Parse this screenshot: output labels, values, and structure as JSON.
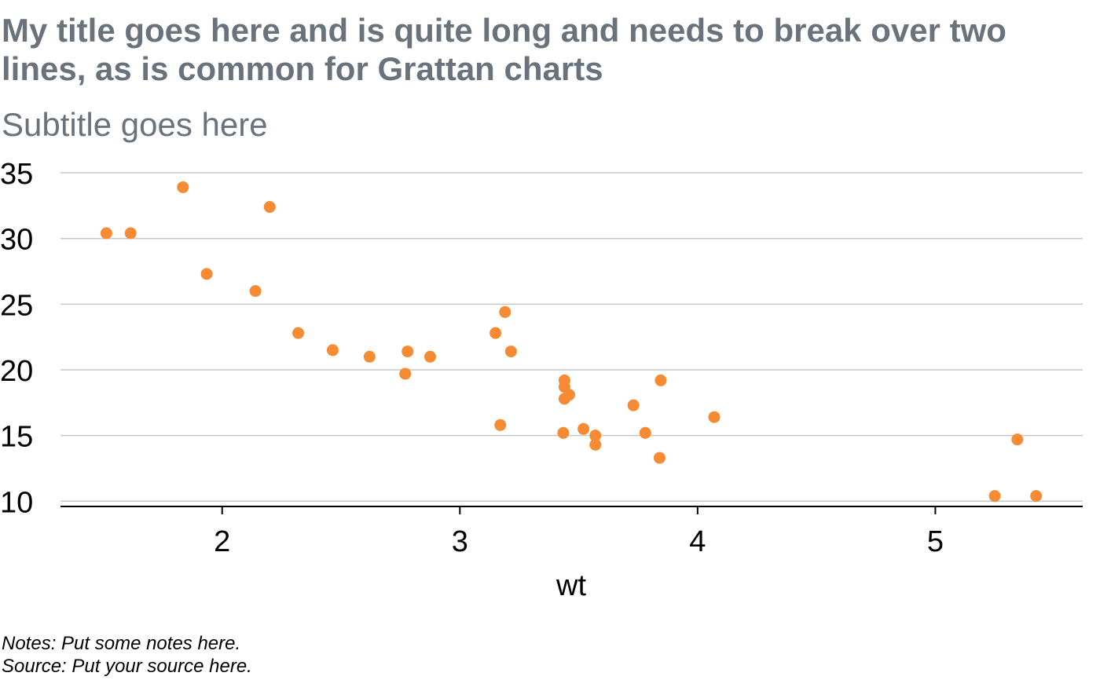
{
  "chart_data": {
    "type": "scatter",
    "title_lines": [
      "My title goes here and is quite long and needs to break over two",
      "lines, as is common for Grattan charts"
    ],
    "subtitle": "Subtitle goes here",
    "xlabel": "wt",
    "ylabel": "",
    "xlim": [
      1.32,
      5.62
    ],
    "ylim": [
      9.6,
      35.9
    ],
    "x_ticks": [
      2,
      3,
      4,
      5
    ],
    "y_ticks": [
      10,
      15,
      20,
      25,
      30,
      35
    ],
    "grid": "horizontal",
    "point_color": "#f68b33",
    "gridline_color": "#c8c8c8",
    "axis_color": "#000000",
    "points": [
      {
        "x": 2.62,
        "y": 21.0
      },
      {
        "x": 2.875,
        "y": 21.0
      },
      {
        "x": 2.32,
        "y": 22.8
      },
      {
        "x": 3.215,
        "y": 21.4
      },
      {
        "x": 3.44,
        "y": 18.7
      },
      {
        "x": 3.46,
        "y": 18.1
      },
      {
        "x": 3.57,
        "y": 14.3
      },
      {
        "x": 3.19,
        "y": 24.4
      },
      {
        "x": 3.15,
        "y": 22.8
      },
      {
        "x": 3.44,
        "y": 19.2
      },
      {
        "x": 3.44,
        "y": 17.8
      },
      {
        "x": 4.07,
        "y": 16.4
      },
      {
        "x": 3.73,
        "y": 17.3
      },
      {
        "x": 3.78,
        "y": 15.2
      },
      {
        "x": 5.25,
        "y": 10.4
      },
      {
        "x": 5.424,
        "y": 10.4
      },
      {
        "x": 5.345,
        "y": 14.7
      },
      {
        "x": 2.2,
        "y": 32.4
      },
      {
        "x": 1.615,
        "y": 30.4
      },
      {
        "x": 1.835,
        "y": 33.9
      },
      {
        "x": 2.465,
        "y": 21.5
      },
      {
        "x": 3.52,
        "y": 15.5
      },
      {
        "x": 3.435,
        "y": 15.2
      },
      {
        "x": 3.84,
        "y": 13.3
      },
      {
        "x": 3.845,
        "y": 19.2
      },
      {
        "x": 1.935,
        "y": 27.3
      },
      {
        "x": 2.14,
        "y": 26.0
      },
      {
        "x": 1.513,
        "y": 30.4
      },
      {
        "x": 3.17,
        "y": 15.8
      },
      {
        "x": 2.77,
        "y": 19.7
      },
      {
        "x": 3.57,
        "y": 15.0
      },
      {
        "x": 2.78,
        "y": 21.4
      }
    ]
  },
  "notes": {
    "notes_line": "Notes: Put some notes here.",
    "source_line": "Source: Put your source here."
  }
}
